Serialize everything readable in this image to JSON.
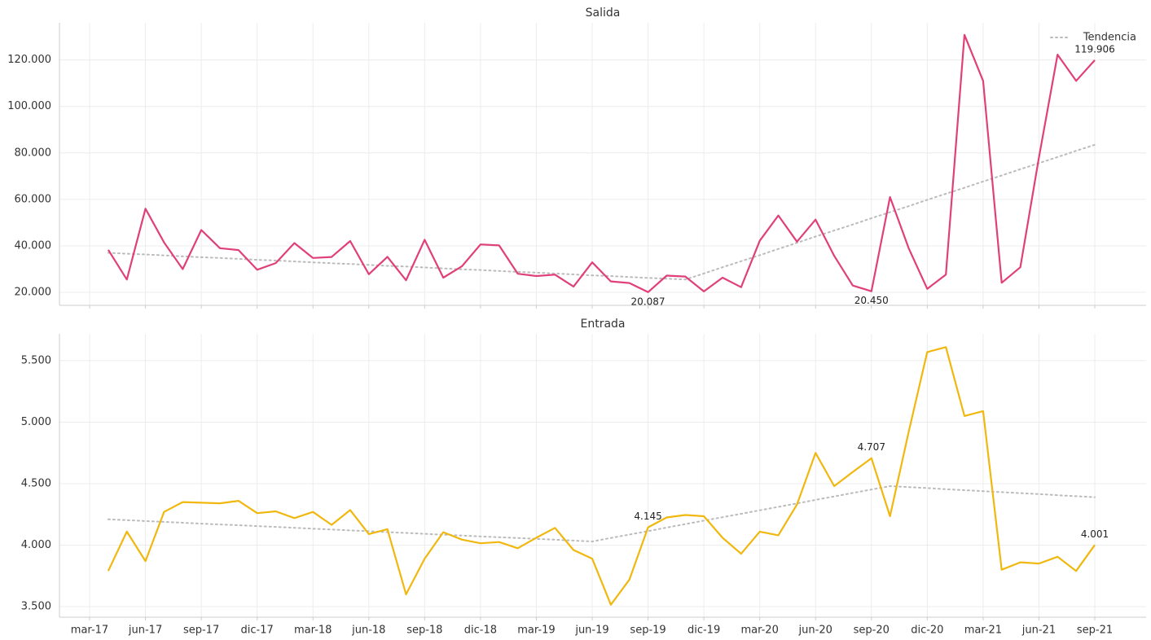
{
  "chart_data": [
    {
      "type": "line",
      "title": "Salida",
      "ylim": [
        14400,
        136000
      ],
      "yticks": [
        {
          "value": 20000,
          "label": "20.000"
        },
        {
          "value": 40000,
          "label": "40.000"
        },
        {
          "value": 60000,
          "label": "60.000"
        },
        {
          "value": 80000,
          "label": "80.000"
        },
        {
          "value": 100000,
          "label": "100.000"
        },
        {
          "value": 120000,
          "label": "120.000"
        }
      ],
      "grid": true,
      "legend": "upper right",
      "series": [
        {
          "color": "#e0407a",
          "values": [
            null,
            38300,
            25500,
            56000,
            41500,
            30000,
            46800,
            39000,
            38200,
            29700,
            32600,
            41200,
            34800,
            35200,
            42100,
            27800,
            35300,
            25200,
            42600,
            26300,
            31200,
            40600,
            40200,
            28000,
            27000,
            27600,
            22500,
            32900,
            24700,
            24000,
            20087,
            27200,
            26800,
            20400,
            26300,
            22200,
            42200,
            53100,
            41800,
            51300,
            35700,
            22900,
            20450,
            61000,
            39000,
            21500,
            27600,
            130800,
            111000,
            24100,
            30800,
            78000,
            122300,
            111000,
            119906
          ],
          "value_labels": [
            null,
            null,
            null,
            null,
            null,
            null,
            null,
            null,
            null,
            null,
            null,
            null,
            null,
            null,
            null,
            null,
            null,
            null,
            null,
            null,
            null,
            null,
            null,
            null,
            null,
            null,
            null,
            null,
            null,
            null,
            "20.087",
            null,
            null,
            null,
            null,
            null,
            null,
            null,
            null,
            null,
            null,
            null,
            "20.450",
            null,
            null,
            null,
            null,
            null,
            null,
            null,
            null,
            null,
            null,
            null,
            "119.906"
          ]
        },
        {
          "name": "Tendencia",
          "color": "#bbbbbb",
          "dashed": true,
          "values": [
            null,
            37000,
            36600,
            36300,
            35900,
            35500,
            35100,
            34800,
            34400,
            34000,
            33700,
            33300,
            32900,
            32500,
            32200,
            31800,
            31400,
            31100,
            30700,
            30300,
            29900,
            29600,
            29200,
            28800,
            28500,
            28100,
            27700,
            27300,
            27000,
            26600,
            26200,
            25900,
            25500,
            28100,
            30800,
            33400,
            36000,
            38700,
            41300,
            44000,
            46600,
            49200,
            51900,
            54500,
            57100,
            59800,
            62400,
            65000,
            67700,
            70300,
            73000,
            75600,
            78200,
            80900,
            83500
          ]
        }
      ]
    },
    {
      "type": "line",
      "title": "Entrada",
      "categories": [
        "mar-17",
        null,
        null,
        "jun-17",
        null,
        null,
        "sep-17",
        null,
        null,
        "dic-17",
        null,
        null,
        "mar-18",
        null,
        null,
        "jun-18",
        null,
        null,
        "sep-18",
        null,
        null,
        "dic-18",
        null,
        null,
        "mar-19",
        null,
        null,
        "jun-19",
        null,
        null,
        "sep-19",
        null,
        null,
        "dic-19",
        null,
        null,
        "mar-20",
        null,
        null,
        "jun-20",
        null,
        null,
        "sep-20",
        null,
        null,
        "dic-20",
        null,
        null,
        "mar-21",
        null,
        null,
        "jun-21",
        null,
        null,
        "sep-21"
      ],
      "ylim": [
        3414,
        5718
      ],
      "yticks": [
        {
          "value": 3500,
          "label": "3.500"
        },
        {
          "value": 4000,
          "label": "4.000"
        },
        {
          "value": 4500,
          "label": "4.500"
        },
        {
          "value": 5000,
          "label": "5.000"
        },
        {
          "value": 5500,
          "label": "5.500"
        }
      ],
      "grid": true,
      "series": [
        {
          "color": "#f0b80f",
          "values": [
            null,
            3790,
            4110,
            3870,
            4270,
            4350,
            4345,
            4340,
            4360,
            4260,
            4275,
            4220,
            4270,
            4165,
            4285,
            4090,
            4130,
            3600,
            3890,
            4105,
            4045,
            4015,
            4025,
            3975,
            4060,
            4140,
            3960,
            3890,
            3515,
            3720,
            4145,
            4225,
            4245,
            4235,
            4060,
            3930,
            4110,
            4080,
            4330,
            4750,
            4480,
            4595,
            4707,
            4235,
            4920,
            5570,
            5610,
            5050,
            5090,
            3800,
            3860,
            3850,
            3905,
            3790,
            4001
          ],
          "value_labels": [
            null,
            null,
            null,
            null,
            null,
            null,
            null,
            null,
            null,
            null,
            null,
            null,
            null,
            null,
            null,
            null,
            null,
            null,
            null,
            null,
            null,
            null,
            null,
            null,
            null,
            null,
            null,
            null,
            null,
            null,
            "4.145",
            null,
            null,
            null,
            null,
            null,
            null,
            null,
            null,
            null,
            null,
            null,
            "4.707",
            null,
            null,
            null,
            null,
            null,
            null,
            null,
            null,
            null,
            null,
            null,
            "4.001"
          ]
        },
        {
          "color": "#bbbbbb",
          "dashed": true,
          "values": [
            null,
            4210,
            4203,
            4196,
            4189,
            4182,
            4175,
            4168,
            4162,
            4155,
            4148,
            4141,
            4134,
            4127,
            4120,
            4113,
            4106,
            4099,
            4092,
            4085,
            4078,
            4071,
            4064,
            4058,
            4051,
            4044,
            4037,
            4030,
            4058,
            4086,
            4114,
            4143,
            4171,
            4199,
            4227,
            4255,
            4283,
            4311,
            4339,
            4368,
            4396,
            4424,
            4452,
            4480,
            4472,
            4464,
            4455,
            4447,
            4439,
            4431,
            4423,
            4415,
            4406,
            4398,
            4390
          ]
        }
      ]
    }
  ]
}
